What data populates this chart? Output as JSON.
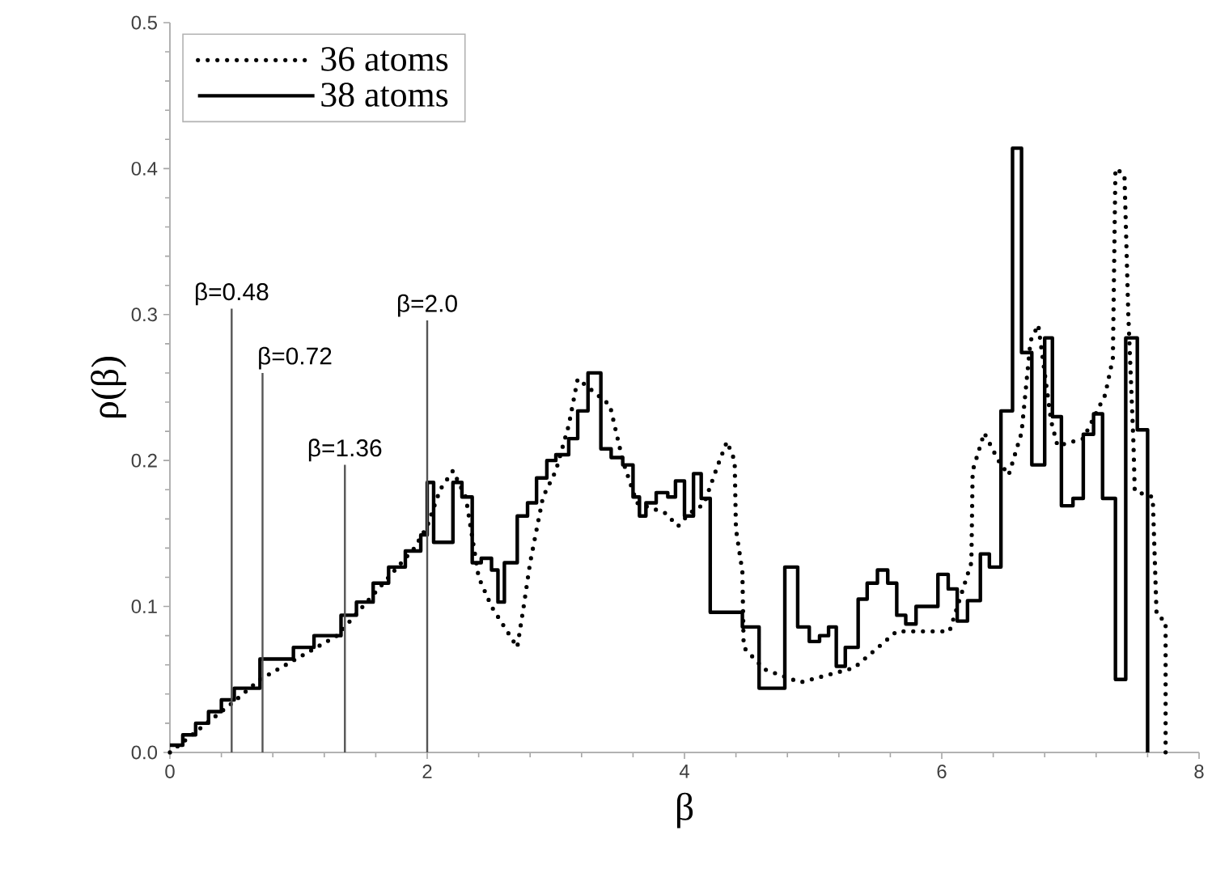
{
  "chart_data": {
    "type": "step",
    "xlabel": "β",
    "ylabel": "ρ(β)",
    "xlim": [
      0,
      8
    ],
    "ylim": [
      0,
      0.5
    ],
    "xticks": [
      0,
      2,
      4,
      6,
      8
    ],
    "yticks": [
      {
        "value": 0,
        "label": "0.0"
      },
      {
        "value": 0.1,
        "label": "0.1"
      },
      {
        "value": 0.2,
        "label": "0.2"
      },
      {
        "value": 0.3,
        "label": "0.3"
      },
      {
        "value": 0.4,
        "label": "0.4"
      },
      {
        "value": 0.5,
        "label": "0.5"
      }
    ],
    "grid": false,
    "legend": "top left",
    "ref_lines": [
      {
        "axis": "x",
        "value": 0.48,
        "label": "β=0.48",
        "color": "#555555"
      },
      {
        "axis": "x",
        "value": 0.72,
        "label": "β=0.72",
        "color": "#555555"
      },
      {
        "axis": "x",
        "value": 1.36,
        "label": "β=1.36",
        "color": "#555555"
      },
      {
        "axis": "x",
        "value": 2.0,
        "label": "β=2.0",
        "color": "#555555"
      }
    ],
    "series": [
      {
        "name": "36 atoms",
        "type": "line",
        "line_style": "dotted",
        "color": "#000000",
        "x": [
          0,
          0.5,
          0.7,
          1.0,
          1.3,
          1.5,
          1.7,
          1.9,
          2.0,
          2.1,
          2.2,
          2.3,
          2.4,
          2.5,
          2.7,
          2.75,
          2.8,
          2.9,
          3.0,
          3.1,
          3.17,
          3.42,
          3.52,
          3.63,
          3.85,
          3.95,
          4.04,
          4.15,
          4.26,
          4.33,
          4.39,
          4.4,
          4.45,
          4.46,
          4.62,
          4.9,
          5.32,
          5.65,
          6.06,
          6.23,
          6.24,
          6.33,
          6.44,
          6.52,
          6.62,
          6.69,
          6.75,
          6.85,
          6.9,
          7.1,
          7.27,
          7.33,
          7.35,
          7.42,
          7.45,
          7.49,
          7.5,
          7.64,
          7.67,
          7.74,
          7.74
        ],
        "values": [
          0,
          0.035,
          0.05,
          0.065,
          0.08,
          0.1,
          0.12,
          0.14,
          0.155,
          0.18,
          0.193,
          0.175,
          0.12,
          0.1,
          0.072,
          0.1,
          0.13,
          0.175,
          0.193,
          0.224,
          0.256,
          0.238,
          0.2,
          0.171,
          0.164,
          0.155,
          0.164,
          0.17,
          0.197,
          0.213,
          0.2,
          0.153,
          0.124,
          0.072,
          0.057,
          0.048,
          0.058,
          0.083,
          0.083,
          0.13,
          0.193,
          0.219,
          0.2,
          0.19,
          0.219,
          0.282,
          0.293,
          0.227,
          0.21,
          0.215,
          0.245,
          0.27,
          0.4,
          0.396,
          0.3,
          0.212,
          0.179,
          0.175,
          0.094,
          0.09,
          0
        ]
      },
      {
        "name": "38 atoms",
        "line_style": "solid",
        "color": "#000000",
        "x": [
          0,
          0.1,
          0.2,
          0.3,
          0.4,
          0.5,
          0.7,
          0.96,
          1.12,
          1.33,
          1.45,
          1.58,
          1.7,
          1.83,
          1.95,
          2.0,
          2.05,
          2.2,
          2.27,
          2.35,
          2.42,
          2.5,
          2.55,
          2.6,
          2.7,
          2.78,
          2.85,
          2.93,
          3.0,
          3.1,
          3.17,
          3.25,
          3.35,
          3.43,
          3.52,
          3.6,
          3.65,
          3.7,
          3.78,
          3.87,
          3.93,
          4.0,
          4.07,
          4.13,
          4.2,
          4.45,
          4.58,
          4.78,
          4.88,
          4.97,
          5.05,
          5.12,
          5.18,
          5.25,
          5.35,
          5.42,
          5.5,
          5.58,
          5.65,
          5.72,
          5.8,
          5.97,
          6.05,
          6.12,
          6.2,
          6.3,
          6.37,
          6.46,
          6.55,
          6.62,
          6.7,
          6.8,
          6.86,
          6.93,
          7.02,
          7.1,
          7.18,
          7.25,
          7.35,
          7.43,
          7.52,
          7.6
        ],
        "values": [
          0.005,
          0.012,
          0.02,
          0.028,
          0.036,
          0.044,
          0.064,
          0.072,
          0.08,
          0.094,
          0.103,
          0.116,
          0.127,
          0.138,
          0.149,
          0.185,
          0.144,
          0.185,
          0.175,
          0.13,
          0.133,
          0.125,
          0.103,
          0.13,
          0.162,
          0.171,
          0.188,
          0.2,
          0.204,
          0.215,
          0.234,
          0.26,
          0.208,
          0.202,
          0.197,
          0.175,
          0.162,
          0.171,
          0.178,
          0.175,
          0.186,
          0.162,
          0.191,
          0.174,
          0.096,
          0.086,
          0.044,
          0.127,
          0.086,
          0.076,
          0.08,
          0.086,
          0.059,
          0.072,
          0.105,
          0.116,
          0.125,
          0.116,
          0.094,
          0.088,
          0.1,
          0.122,
          0.112,
          0.09,
          0.104,
          0.136,
          0.127,
          0.234,
          0.414,
          0.274,
          0.197,
          0.284,
          0.23,
          0.169,
          0.174,
          0.218,
          0.232,
          0.174,
          0.05,
          0.284,
          0.221,
          0
        ]
      }
    ]
  }
}
